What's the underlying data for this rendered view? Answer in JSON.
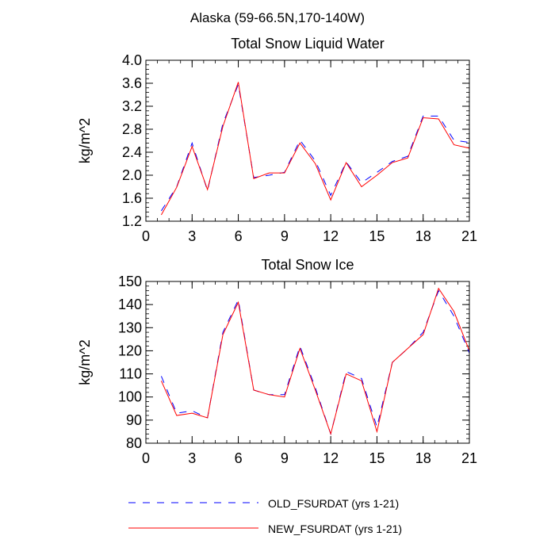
{
  "figure_title": "Alaska (59-66.5N,170-140W)",
  "legend": [
    {
      "label": "OLD_FSURDAT (yrs 1-21)",
      "color": "#0000ff",
      "style": "dashed"
    },
    {
      "label": "NEW_FSURDAT (yrs 1-21)",
      "color": "#ff0000",
      "style": "solid"
    }
  ],
  "chart_data": [
    {
      "type": "line",
      "title": "Total Snow Liquid Water",
      "xlabel": "",
      "ylabel": "kg/m^2",
      "xlim": [
        0,
        21
      ],
      "ylim": [
        1.2,
        4.0
      ],
      "x_ticks": [
        0,
        3,
        6,
        9,
        12,
        15,
        18,
        21
      ],
      "y_ticks": [
        1.2,
        1.6,
        2.0,
        2.4,
        2.8,
        3.2,
        3.6,
        4.0
      ],
      "y_tick_labels": [
        "1.2",
        "1.6",
        "2.0",
        "2.4",
        "2.8",
        "3.2",
        "3.6",
        "4.0"
      ],
      "x": [
        1,
        2,
        3,
        4,
        5,
        6,
        7,
        8,
        9,
        10,
        11,
        12,
        13,
        14,
        15,
        16,
        17,
        18,
        19,
        20,
        21
      ],
      "series": [
        {
          "name": "OLD_FSURDAT (yrs 1-21)",
          "color": "#0000ff",
          "values": [
            1.38,
            1.8,
            2.56,
            1.73,
            2.9,
            3.58,
            1.96,
            2.0,
            2.05,
            2.61,
            2.25,
            1.65,
            2.23,
            1.87,
            2.05,
            2.24,
            2.33,
            3.03,
            3.03,
            2.61,
            2.57
          ]
        },
        {
          "name": "NEW_FSURDAT (yrs 1-21)",
          "color": "#ff0000",
          "values": [
            1.31,
            1.79,
            2.5,
            1.75,
            2.85,
            3.62,
            1.94,
            2.04,
            2.04,
            2.56,
            2.2,
            1.57,
            2.22,
            1.8,
            2.0,
            2.22,
            2.3,
            3.0,
            2.98,
            2.53,
            2.47
          ]
        }
      ]
    },
    {
      "type": "line",
      "title": "Total Snow Ice",
      "xlabel": "",
      "ylabel": "kg/m^2",
      "xlim": [
        0,
        21
      ],
      "ylim": [
        80,
        150
      ],
      "x_ticks": [
        0,
        3,
        6,
        9,
        12,
        15,
        18,
        21
      ],
      "y_ticks": [
        80,
        90,
        100,
        110,
        120,
        130,
        140,
        150
      ],
      "y_tick_labels": [
        "80",
        "90",
        "100",
        "110",
        "120",
        "130",
        "140",
        "150"
      ],
      "x": [
        1,
        2,
        3,
        4,
        5,
        6,
        7,
        8,
        9,
        10,
        11,
        12,
        13,
        14,
        15,
        16,
        17,
        18,
        19,
        20,
        21
      ],
      "series": [
        {
          "name": "OLD_FSURDAT (yrs 1-21)",
          "color": "#0000ff",
          "values": [
            109,
            93,
            94,
            91,
            128,
            142,
            103,
            101,
            101,
            122,
            104,
            84,
            111,
            108,
            87,
            115,
            121,
            128,
            146,
            135,
            119
          ]
        },
        {
          "name": "NEW_FSURDAT (yrs 1-21)",
          "color": "#ff0000",
          "values": [
            107,
            92,
            93,
            91,
            127,
            141,
            103,
            101,
            100,
            121,
            103,
            84,
            110,
            107,
            85,
            115,
            121,
            127,
            147,
            137,
            120
          ]
        }
      ]
    }
  ]
}
